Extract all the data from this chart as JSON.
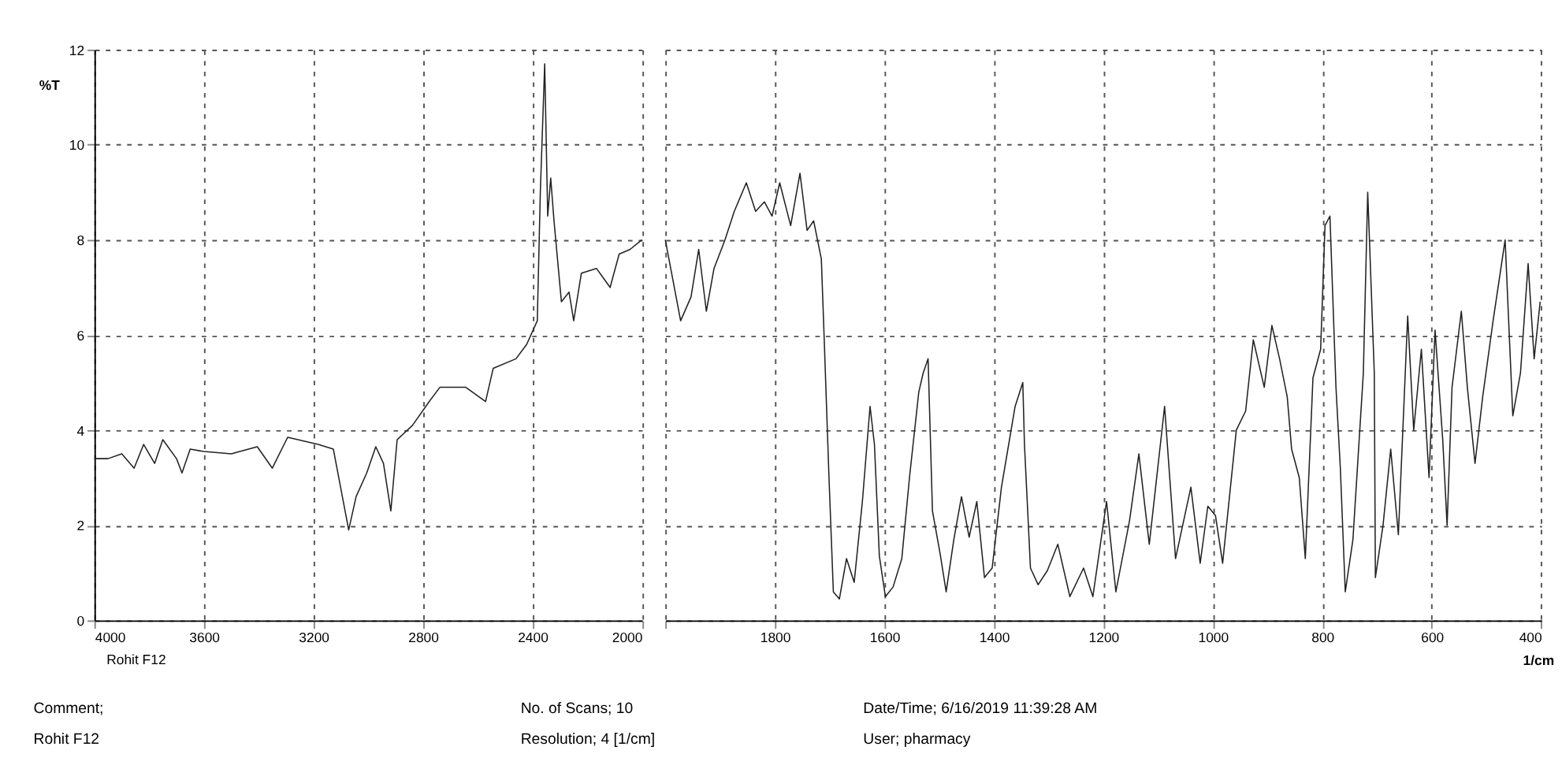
{
  "chart_data": [
    {
      "type": "line",
      "ylabel": "%T",
      "xlim": [
        4000,
        2000
      ],
      "xticks": [
        4000,
        3600,
        3200,
        2800,
        2400,
        2000
      ],
      "ylim": [
        0,
        12
      ],
      "yticks": [
        0,
        2,
        4,
        6,
        8,
        10,
        12
      ],
      "grid": true,
      "line_style": "solid",
      "annotations": [
        "Rohit F12",
        "Comment;",
        "Rohit F12",
        "No. of Scans; 10",
        "Resolution;   4 [1/cm]"
      ],
      "series": [
        {
          "color": "#222222",
          "x": [
            4000,
            3950,
            3900,
            3855,
            3820,
            3780,
            3750,
            3700,
            3680,
            3650,
            3600,
            3500,
            3405,
            3350,
            3294,
            3183,
            3127,
            3071,
            3044,
            3005,
            2972,
            2944,
            2917,
            2894,
            2838,
            2777,
            2738,
            2643,
            2571,
            2543,
            2460,
            2421,
            2382,
            2371,
            2355,
            2344,
            2333,
            2321,
            2294,
            2266,
            2249,
            2221,
            2166,
            2116,
            2083,
            2043,
            2000
          ],
          "values": [
            3.4,
            3.4,
            3.5,
            3.2,
            3.7,
            3.3,
            3.8,
            3.4,
            3.1,
            3.6,
            3.55,
            3.5,
            3.65,
            3.2,
            3.85,
            3.7,
            3.6,
            1.9,
            2.6,
            3.1,
            3.65,
            3.3,
            2.3,
            3.8,
            4.1,
            4.6,
            4.9,
            4.9,
            4.6,
            5.3,
            5.5,
            5.8,
            6.3,
            9.0,
            11.7,
            8.5,
            9.3,
            8.4,
            6.7,
            6.9,
            6.3,
            7.3,
            7.4,
            7.0,
            7.7,
            7.8,
            8.0
          ]
        }
      ]
    },
    {
      "type": "line",
      "xlabel": "1/cm",
      "tick_labels": "x",
      "xlim": [
        2000,
        400
      ],
      "xticks": [
        {
          "value": 2000,
          "label": null
        },
        1800,
        1600,
        1400,
        1200,
        1000,
        800,
        600,
        400
      ],
      "ylim": [
        0,
        12
      ],
      "yticks": [
        0,
        2,
        4,
        6,
        8,
        10,
        12
      ],
      "grid": true,
      "line_style": "solid",
      "annotations": [
        "Date/Time; 6/16/2019 11:39:28 AM",
        "User;   pharmacy"
      ],
      "series": [
        {
          "color": "#222222",
          "x": [
            2000,
            1972,
            1953,
            1939,
            1925,
            1911,
            1891,
            1874,
            1852,
            1835,
            1819,
            1805,
            1791,
            1771,
            1754,
            1741,
            1729,
            1715,
            1710,
            1701,
            1693,
            1682,
            1669,
            1655,
            1640,
            1626,
            1618,
            1609,
            1598,
            1584,
            1568,
            1554,
            1537,
            1529,
            1520,
            1512,
            1498,
            1487,
            1473,
            1459,
            1445,
            1431,
            1417,
            1403,
            1386,
            1361,
            1347,
            1344,
            1333,
            1319,
            1302,
            1283,
            1261,
            1236,
            1219,
            1194,
            1177,
            1152,
            1135,
            1116,
            1088,
            1068,
            1040,
            1023,
            1009,
            995,
            982,
            957,
            940,
            926,
            906,
            892,
            878,
            864,
            856,
            842,
            831,
            817,
            803,
            795,
            786,
            775,
            767,
            758,
            744,
            725,
            717,
            705,
            703,
            689,
            675,
            661,
            644,
            633,
            619,
            605,
            594,
            580,
            572,
            563,
            546,
            535,
            521,
            507,
            488,
            466,
            452,
            438,
            424,
            413,
            402
          ],
          "values": [
            8.0,
            6.3,
            6.8,
            7.8,
            6.5,
            7.4,
            8.0,
            8.6,
            9.2,
            8.6,
            8.8,
            8.5,
            9.2,
            8.3,
            9.4,
            8.2,
            8.4,
            7.6,
            6.0,
            3.0,
            0.6,
            0.45,
            1.3,
            0.8,
            2.5,
            4.5,
            3.7,
            1.35,
            0.5,
            0.7,
            1.3,
            3.0,
            4.8,
            5.2,
            5.5,
            2.3,
            1.4,
            0.6,
            1.7,
            2.6,
            1.75,
            2.5,
            0.9,
            1.1,
            2.8,
            4.5,
            5.0,
            3.7,
            1.1,
            0.75,
            1.05,
            1.6,
            0.5,
            1.1,
            0.5,
            2.5,
            0.6,
            2.1,
            3.5,
            1.6,
            4.5,
            1.3,
            2.8,
            1.2,
            2.4,
            2.2,
            1.2,
            4.0,
            4.4,
            5.9,
            4.9,
            6.2,
            5.5,
            4.7,
            3.6,
            3.0,
            1.3,
            5.1,
            5.7,
            8.3,
            8.5,
            4.9,
            3.2,
            0.6,
            1.7,
            5.2,
            9.0,
            5.2,
            0.9,
            2.0,
            3.6,
            1.8,
            6.4,
            4.0,
            5.7,
            3.0,
            6.1,
            3.8,
            2.0,
            4.9,
            6.5,
            4.9,
            3.3,
            4.7,
            6.3,
            8.0,
            4.3,
            5.2,
            7.5,
            5.5,
            6.7
          ]
        }
      ]
    }
  ]
}
